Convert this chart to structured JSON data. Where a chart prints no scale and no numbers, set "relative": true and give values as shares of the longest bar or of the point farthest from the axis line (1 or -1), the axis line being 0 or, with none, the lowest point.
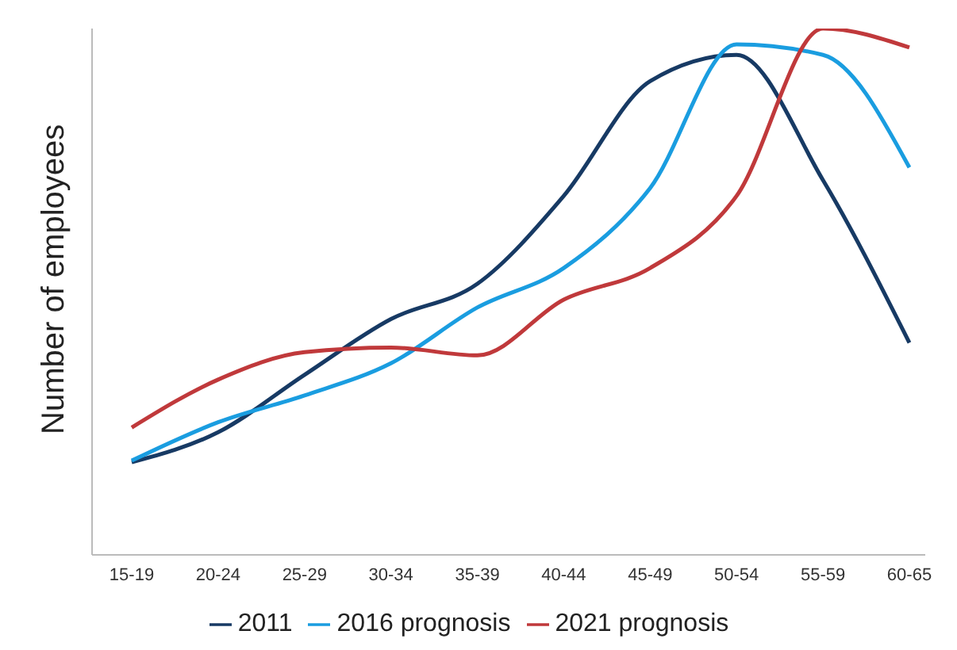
{
  "chart_data": {
    "type": "line",
    "relative": true,
    "ylabel": "Number of employees",
    "categories": [
      "15-19",
      "20-24",
      "25-29",
      "30-34",
      "35-39",
      "40-44",
      "45-49",
      "50-54",
      "55-59",
      "60-65"
    ],
    "series": [
      {
        "name": "2011",
        "color": "#173a64",
        "values": [
          0.176,
          0.233,
          0.342,
          0.448,
          0.515,
          0.682,
          0.9,
          0.95,
          0.712,
          0.403
        ]
      },
      {
        "name": "2016 prognosis",
        "color": "#1a9de0",
        "values": [
          0.179,
          0.252,
          0.303,
          0.364,
          0.47,
          0.545,
          0.697,
          0.97,
          0.95,
          0.736
        ]
      },
      {
        "name": "2021 prognosis",
        "color": "#c0393b",
        "values": [
          0.242,
          0.333,
          0.385,
          0.394,
          0.379,
          0.485,
          0.545,
          0.682,
          1,
          0.964
        ]
      }
    ],
    "grid": false,
    "legend": "bottom",
    "marker": "none",
    "line_style": "solid"
  }
}
